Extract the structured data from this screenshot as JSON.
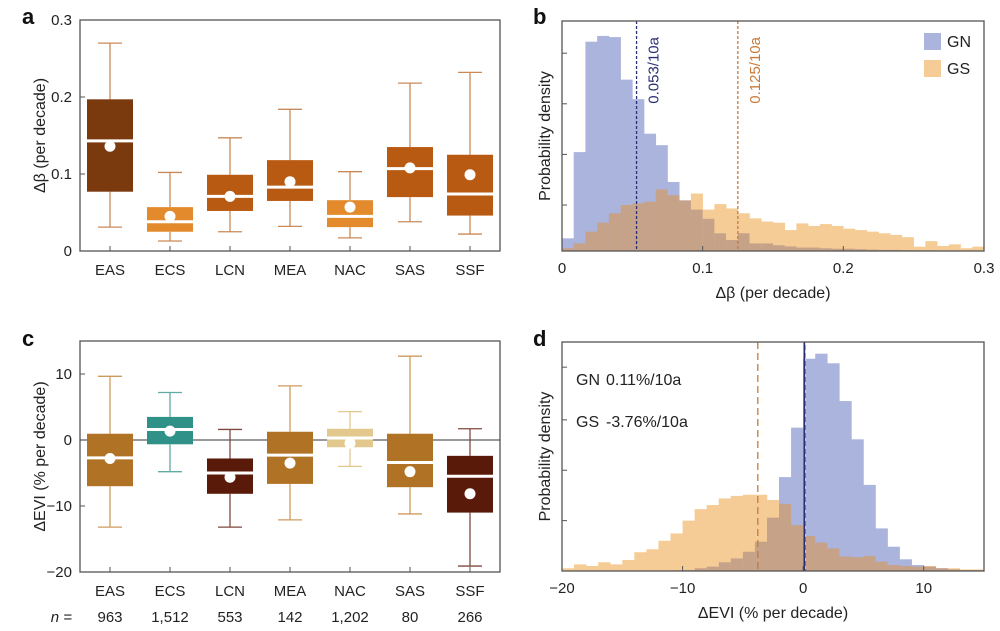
{
  "chart_data": [
    {
      "panel": "a",
      "type": "box",
      "title": "",
      "xlabel": "",
      "ylabel": "Δβ (per decade)",
      "ylim": [
        0,
        0.3
      ],
      "yticks": [
        0,
        0.1,
        0.2,
        0.3
      ],
      "ytick_labels": [
        "0",
        "0.1",
        "0.2",
        "0.3"
      ],
      "categories": [
        "EAS",
        "ECS",
        "LCN",
        "MEA",
        "NAC",
        "SAS",
        "SSF"
      ],
      "boxes": [
        {
          "name": "EAS",
          "whisker_low": 0.031,
          "q1": 0.077,
          "median": 0.143,
          "q3": 0.197,
          "whisker_high": 0.27,
          "mean": 0.136,
          "color": "#7b3a0e"
        },
        {
          "name": "ECS",
          "whisker_low": 0.013,
          "q1": 0.025,
          "median": 0.038,
          "q3": 0.057,
          "whisker_high": 0.102,
          "mean": 0.045,
          "color": "#e38b2c"
        },
        {
          "name": "LCN",
          "whisker_low": 0.025,
          "q1": 0.052,
          "median": 0.071,
          "q3": 0.099,
          "whisker_high": 0.147,
          "mean": 0.071,
          "color": "#b85a12"
        },
        {
          "name": "MEA",
          "whisker_low": 0.032,
          "q1": 0.065,
          "median": 0.083,
          "q3": 0.118,
          "whisker_high": 0.184,
          "mean": 0.09,
          "color": "#b85a12"
        },
        {
          "name": "NAC",
          "whisker_low": 0.017,
          "q1": 0.031,
          "median": 0.045,
          "q3": 0.066,
          "whisker_high": 0.103,
          "mean": 0.057,
          "color": "#e38b2c"
        },
        {
          "name": "SAS",
          "whisker_low": 0.038,
          "q1": 0.07,
          "median": 0.107,
          "q3": 0.135,
          "whisker_high": 0.218,
          "mean": 0.108,
          "color": "#b85a12"
        },
        {
          "name": "SSF",
          "whisker_low": 0.022,
          "q1": 0.046,
          "median": 0.074,
          "q3": 0.125,
          "whisker_high": 0.232,
          "mean": 0.099,
          "color": "#b85a12"
        }
      ],
      "whisker_color": "#c98a58"
    },
    {
      "panel": "b",
      "type": "histogram",
      "title": "",
      "xlabel": "Δβ (per decade)",
      "ylabel": "Probability density",
      "xlim": [
        0,
        0.3
      ],
      "xticks": [
        0,
        0.1,
        0.2,
        0.3
      ],
      "xtick_labels": [
        "0",
        "0.1",
        "0.2",
        "0.3"
      ],
      "ylim": [
        0,
        1
      ],
      "yticks": [
        0.2,
        0.42,
        0.64,
        0.86
      ],
      "bin_start": 0,
      "bin_width": 0.008333,
      "legend": {
        "position": "top-right",
        "entries": [
          {
            "label": "GN",
            "color": "#aab4dc"
          },
          {
            "label": "GS",
            "color": "#f6cc96"
          }
        ]
      },
      "overlap_color": "#c6a288",
      "series": [
        {
          "name": "GN",
          "color": "#aab4dc",
          "values": [
            0.055,
            0.43,
            0.91,
            0.935,
            0.93,
            0.745,
            0.66,
            0.51,
            0.46,
            0.3,
            0.22,
            0.18,
            0.14,
            0.077,
            0.048,
            0.077,
            0.033,
            0.033,
            0.025,
            0.02,
            0.015,
            0.015,
            0.012,
            0.01,
            0.01,
            0.008,
            0.006,
            0.005,
            0.005,
            0.004,
            0.003,
            0.003,
            0.002,
            0.002,
            0.002,
            0.002
          ]
        },
        {
          "name": "GS",
          "color": "#f6cc96",
          "values": [
            0.012,
            0.033,
            0.084,
            0.123,
            0.164,
            0.2,
            0.207,
            0.214,
            0.268,
            0.243,
            0.22,
            0.25,
            0.18,
            0.204,
            0.185,
            0.164,
            0.142,
            0.128,
            0.123,
            0.091,
            0.12,
            0.109,
            0.117,
            0.109,
            0.097,
            0.091,
            0.084,
            0.077,
            0.07,
            0.06,
            0.019,
            0.043,
            0.022,
            0.029,
            0.012,
            0.019
          ]
        }
      ],
      "vlines": [
        {
          "x": 0.053,
          "label": "0.053/10a",
          "color": "#2a2f73"
        },
        {
          "x": 0.125,
          "label": "0.125/10a",
          "color": "#c77a3a"
        }
      ]
    },
    {
      "panel": "c",
      "type": "box",
      "title": "",
      "xlabel": "",
      "ylabel": "ΔEVI (% per decade)",
      "ylim": [
        -20,
        15
      ],
      "yticks": [
        -20,
        -10,
        0,
        10
      ],
      "ytick_labels": [
        "−20",
        "−10",
        "0",
        "10"
      ],
      "zero_line": true,
      "categories": [
        "EAS",
        "ECS",
        "LCN",
        "MEA",
        "NAC",
        "SAS",
        "SSF"
      ],
      "n_label": "n =",
      "n_values": [
        "963",
        "1,512",
        "553",
        "142",
        "1,202",
        "80",
        "266"
      ],
      "boxes": [
        {
          "name": "EAS",
          "whisker_low": -13.2,
          "q1": -7.0,
          "median": -2.7,
          "q3": 0.95,
          "whisker_high": 9.65,
          "mean": -2.8,
          "color": "#b07224",
          "whisker_color": "#cf9a5e"
        },
        {
          "name": "ECS",
          "whisker_low": -4.8,
          "q1": -0.65,
          "median": 1.6,
          "q3": 3.5,
          "whisker_high": 7.2,
          "mean": 1.35,
          "color": "#2f9188",
          "whisker_color": "#62aaa4"
        },
        {
          "name": "LCN",
          "whisker_low": -13.2,
          "q1": -8.15,
          "median": -5.0,
          "q3": -2.8,
          "whisker_high": 1.6,
          "mean": -5.65,
          "color": "#5a1a0a",
          "whisker_color": "#7d4a3e"
        },
        {
          "name": "MEA",
          "whisker_low": -12.1,
          "q1": -6.65,
          "median": -2.3,
          "q3": 1.25,
          "whisker_high": 8.2,
          "mean": -3.5,
          "color": "#b07224",
          "whisker_color": "#cf9a5e"
        },
        {
          "name": "NAC",
          "whisker_low": -4.0,
          "q1": -1.1,
          "median": 0.3,
          "q3": 1.7,
          "whisker_high": 4.3,
          "mean": -0.5,
          "color": "#e3c88e",
          "whisker_color": "#e3c88e"
        },
        {
          "name": "SAS",
          "whisker_low": -11.2,
          "q1": -7.15,
          "median": -3.4,
          "q3": 0.95,
          "whisker_high": 12.7,
          "mean": -4.8,
          "color": "#b07224",
          "whisker_color": "#cf9a5e"
        },
        {
          "name": "SSF",
          "whisker_low": -19.1,
          "q1": -11.0,
          "median": -5.5,
          "q3": -2.4,
          "whisker_high": 1.7,
          "mean": -8.15,
          "color": "#5a1a0a",
          "whisker_color": "#7d4a3e"
        }
      ]
    },
    {
      "panel": "d",
      "type": "histogram",
      "title": "",
      "xlabel": "ΔEVI (% per decade)",
      "ylabel": "Probability density",
      "xlim": [
        -20,
        15
      ],
      "xticks": [
        -20,
        -10,
        0,
        10
      ],
      "xtick_labels": [
        "−20",
        "−10",
        "0",
        "10"
      ],
      "ylim": [
        0,
        1
      ],
      "yticks": [
        0.22,
        0.44,
        0.66,
        0.89
      ],
      "bin_start": -20,
      "bin_width": 1,
      "overlap_color": "#c6a288",
      "series": [
        {
          "name": "GN",
          "color": "#aab4dc",
          "values": [
            0,
            0,
            0,
            0,
            0,
            0,
            0,
            0,
            0.002,
            0.003,
            0.004,
            0.012,
            0.019,
            0.038,
            0.055,
            0.084,
            0.128,
            0.233,
            0.41,
            0.626,
            0.927,
            0.949,
            0.907,
            0.742,
            0.575,
            0.376,
            0.186,
            0.106,
            0.051,
            0.026,
            0.019,
            0.012,
            0.007,
            0.004,
            0.004
          ]
        },
        {
          "name": "GS",
          "color": "#f6cc96",
          "values": [
            0.012,
            0.029,
            0.022,
            0.038,
            0.029,
            0.048,
            0.082,
            0.095,
            0.132,
            0.164,
            0.22,
            0.27,
            0.288,
            0.317,
            0.328,
            0.333,
            0.333,
            0.31,
            0.293,
            0.2,
            0.153,
            0.124,
            0.099,
            0.063,
            0.06,
            0.066,
            0.041,
            0.026,
            0.022,
            0.019,
            0.022,
            0.012,
            0.012,
            0.007,
            0.007
          ]
        }
      ],
      "vlines": [
        {
          "x": 0.11,
          "color": "#2a2f73",
          "style": "solid"
        },
        {
          "x": -3.76,
          "color": "#c77a3a",
          "style": "dashed"
        }
      ],
      "annotations": [
        {
          "label": "GN",
          "value": "0.11%/10a"
        },
        {
          "label": "GS",
          "value": "-3.76%/10a"
        }
      ]
    }
  ]
}
